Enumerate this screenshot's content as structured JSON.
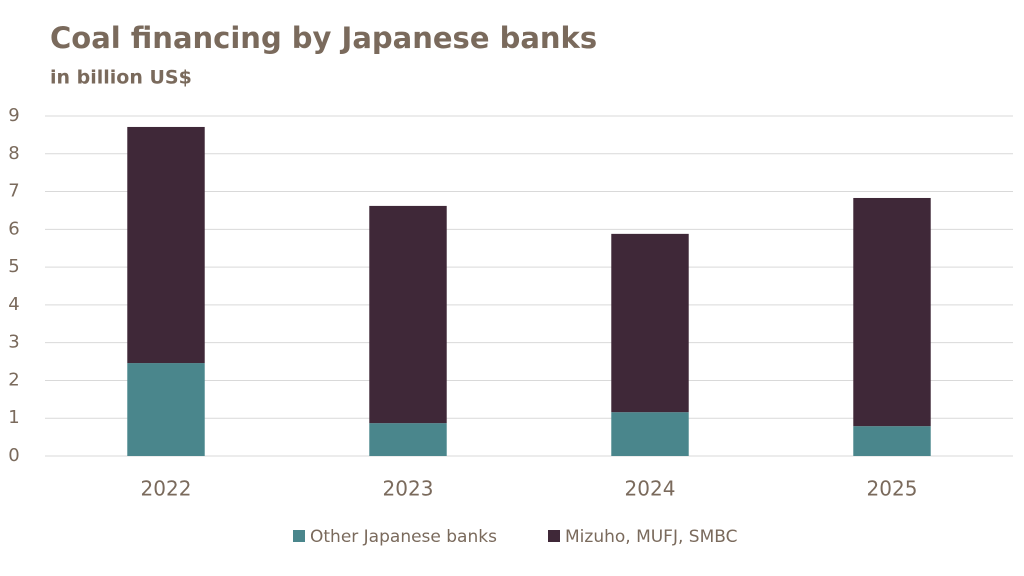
{
  "chart_data": {
    "type": "stacked_bar",
    "title": "Coal financing by Japanese banks",
    "subtitle": "in billion US$",
    "categories": [
      "2022",
      "2023",
      "2024",
      "2025"
    ],
    "series": [
      {
        "name": "Other Japanese banks",
        "color": "#4a868c",
        "values": [
          2.46,
          0.87,
          1.16,
          0.79
        ]
      },
      {
        "name": "Mizuho, MUFJ, SMBC",
        "color": "#3f2838",
        "values": [
          6.25,
          5.75,
          4.72,
          6.04
        ]
      }
    ],
    "ylim": [
      0,
      9
    ],
    "yticks": [
      0,
      1,
      2,
      3,
      4,
      5,
      6,
      7,
      8,
      9
    ],
    "grid": true,
    "legend": "bottom"
  }
}
